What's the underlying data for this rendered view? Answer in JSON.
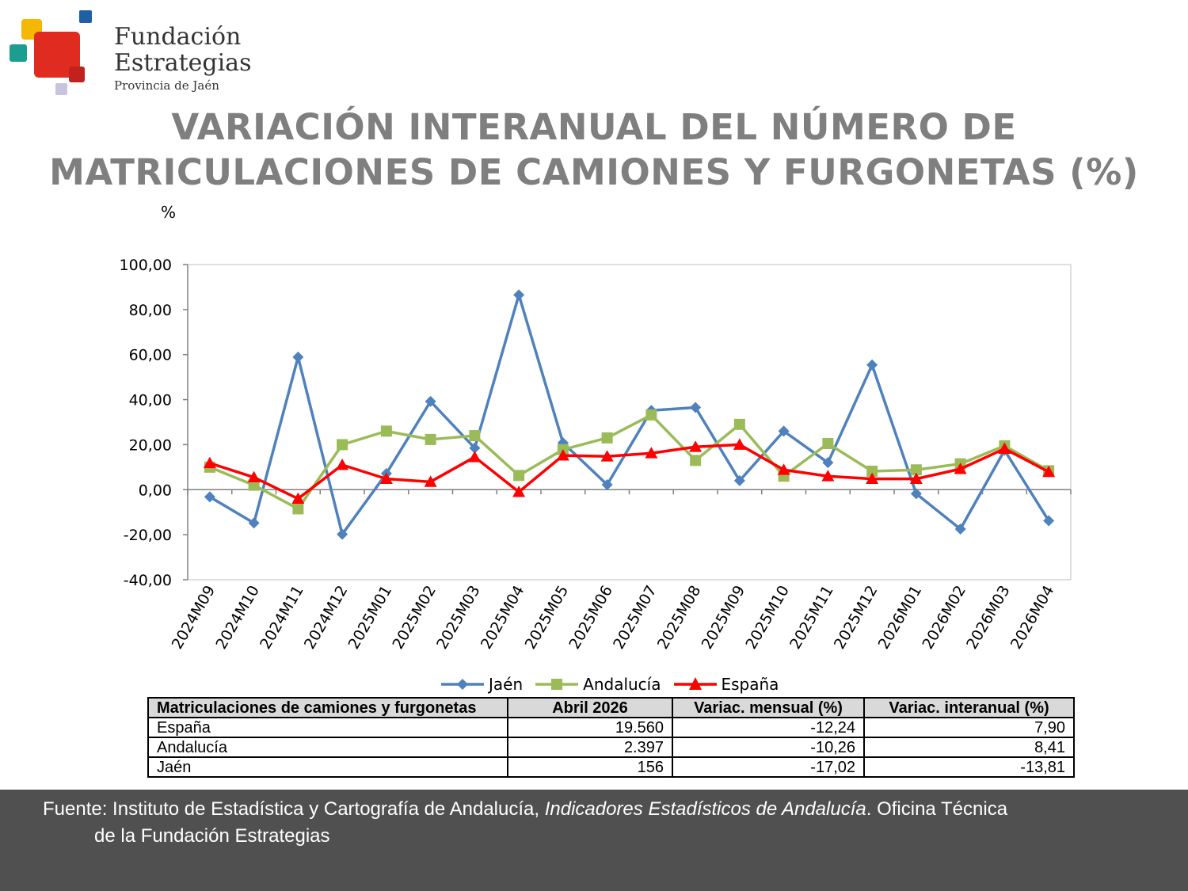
{
  "logo": {
    "line1": "Fundación",
    "line2": "Estrategias",
    "line3": "Provincia de Jaén"
  },
  "title": {
    "line1": "VARIACIÓN INTERANUAL DEL NÚMERO DE",
    "line2": "MATRICULACIONES DE CAMIONES Y FURGONETAS (%)"
  },
  "unit_label": "%",
  "chart_data": {
    "type": "line",
    "ylabel": "%",
    "ylim": [
      -40,
      100
    ],
    "yticks": [
      "100,00",
      "80,00",
      "60,00",
      "40,00",
      "20,00",
      "0,00",
      "-20,00",
      "-40,00"
    ],
    "categories": [
      "2024M09",
      "2024M10",
      "2024M11",
      "2024M12",
      "2025M01",
      "2025M02",
      "2025M03",
      "2025M04",
      "2025M05",
      "2025M06",
      "2025M07",
      "2025M08",
      "2025M09",
      "2025M10",
      "2025M11",
      "2025M12",
      "2026M01",
      "2026M02",
      "2026M03",
      "2026M04"
    ],
    "grid": false,
    "legend_position": "bottom",
    "series": [
      {
        "name": "Jaén",
        "color": "#4f81bd",
        "marker": "diamond",
        "values": [
          -3.2,
          -14.8,
          58.9,
          -19.8,
          7.2,
          39.2,
          18.5,
          86.5,
          20.8,
          2.2,
          35.2,
          36.5,
          4.0,
          26.0,
          12.0,
          55.4,
          -1.8,
          -17.5,
          17.5,
          -13.81
        ]
      },
      {
        "name": "Andalucía",
        "color": "#9bbb59",
        "marker": "square",
        "values": [
          10.0,
          2.0,
          -8.5,
          20.0,
          26.0,
          22.3,
          24.0,
          6.3,
          17.8,
          23.0,
          33.2,
          13.0,
          29.0,
          6.0,
          20.5,
          8.2,
          8.8,
          11.5,
          19.5,
          8.41
        ]
      },
      {
        "name": "España",
        "color": "#ff0000",
        "marker": "triangle",
        "values": [
          11.8,
          5.5,
          -4.0,
          11.0,
          4.8,
          3.5,
          14.5,
          -1.0,
          15.2,
          14.8,
          16.2,
          19.0,
          20.0,
          8.8,
          6.0,
          4.8,
          4.8,
          9.2,
          18.2,
          7.9
        ]
      }
    ]
  },
  "table": {
    "headers": [
      "Matriculaciones de camiones y furgonetas",
      "Abril 2026",
      "Variac. mensual (%)",
      "Variac. interanual (%)"
    ],
    "rows": [
      [
        "España",
        "19.560",
        "-12,24",
        "7,90"
      ],
      [
        "Andalucía",
        "2.397",
        "-10,26",
        "8,41"
      ],
      [
        "Jaén",
        "156",
        "-17,02",
        "-13,81"
      ]
    ]
  },
  "footer": {
    "prefix": "Fuente: Instituto de Estadística y Cartografía de Andalucía, ",
    "italic": "Indicadores Estadísticos de Andalucía",
    "suffix": ". Oficina Técnica",
    "line2": "de la Fundación Estrategias"
  }
}
